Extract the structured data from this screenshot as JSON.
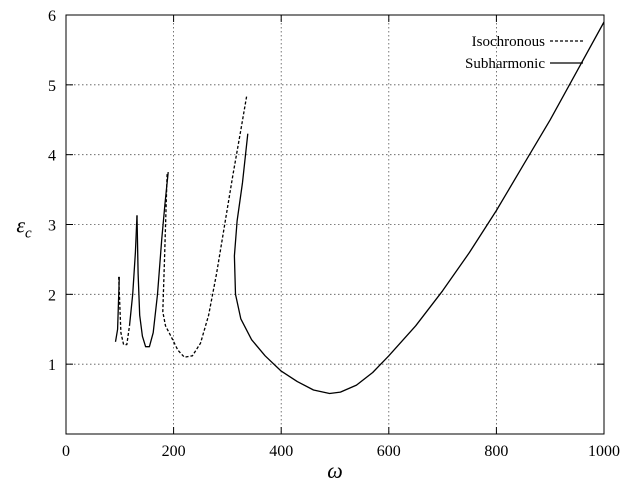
{
  "chart_data": {
    "type": "line",
    "title": "",
    "xlabel": "ω",
    "ylabel_main": "ε",
    "ylabel_sub": "c",
    "xlim": [
      0,
      1000
    ],
    "ylim": [
      0,
      6
    ],
    "xticks": [
      0,
      200,
      400,
      600,
      800,
      1000
    ],
    "yticks": [
      1,
      2,
      3,
      4,
      5,
      6
    ],
    "grid": true,
    "legend_position": "top-right",
    "series": [
      {
        "name": "Isochronous",
        "style": "dashed",
        "color": "#000000",
        "segments": [
          [
            [
              98,
              2.25
            ],
            [
              102,
              1.45
            ],
            [
              107,
              1.28
            ],
            [
              113,
              1.28
            ],
            [
              118,
              1.55
            ]
          ],
          [
            [
              188,
              3.72
            ],
            [
              183,
              2.5
            ],
            [
              180,
              1.75
            ],
            [
              185,
              1.55
            ],
            [
              195,
              1.4
            ],
            [
              208,
              1.2
            ],
            [
              220,
              1.1
            ],
            [
              235,
              1.12
            ],
            [
              250,
              1.3
            ],
            [
              265,
              1.7
            ],
            [
              280,
              2.3
            ],
            [
              295,
              3.0
            ],
            [
              310,
              3.7
            ],
            [
              325,
              4.35
            ],
            [
              336,
              4.85
            ]
          ]
        ]
      },
      {
        "name": "Subharmonic",
        "style": "solid",
        "color": "#000000",
        "segments": [
          [
            [
              92,
              1.32
            ],
            [
              96,
              1.5
            ],
            [
              99,
              2.25
            ]
          ],
          [
            [
              118,
              1.55
            ],
            [
              124,
              2.0
            ],
            [
              129,
              2.6
            ],
            [
              132,
              3.13
            ]
          ],
          [
            [
              132,
              3.13
            ],
            [
              134,
              2.3
            ],
            [
              137,
              1.7
            ],
            [
              142,
              1.4
            ],
            [
              148,
              1.25
            ],
            [
              155,
              1.25
            ],
            [
              162,
              1.45
            ],
            [
              170,
              2.0
            ],
            [
              178,
              2.8
            ],
            [
              184,
              3.3
            ],
            [
              190,
              3.75
            ]
          ],
          [
            [
              338,
              4.3
            ],
            [
              328,
              3.6
            ],
            [
              318,
              3.05
            ],
            [
              313,
              2.55
            ],
            [
              315,
              2.0
            ],
            [
              325,
              1.65
            ],
            [
              345,
              1.35
            ],
            [
              370,
              1.12
            ],
            [
              400,
              0.9
            ],
            [
              430,
              0.75
            ],
            [
              460,
              0.63
            ],
            [
              490,
              0.58
            ],
            [
              510,
              0.6
            ],
            [
              540,
              0.7
            ],
            [
              570,
              0.88
            ],
            [
              600,
              1.12
            ],
            [
              650,
              1.55
            ],
            [
              700,
              2.05
            ],
            [
              750,
              2.6
            ],
            [
              800,
              3.2
            ],
            [
              850,
              3.85
            ],
            [
              900,
              4.5
            ],
            [
              950,
              5.2
            ],
            [
              1000,
              5.9
            ]
          ]
        ]
      }
    ]
  }
}
